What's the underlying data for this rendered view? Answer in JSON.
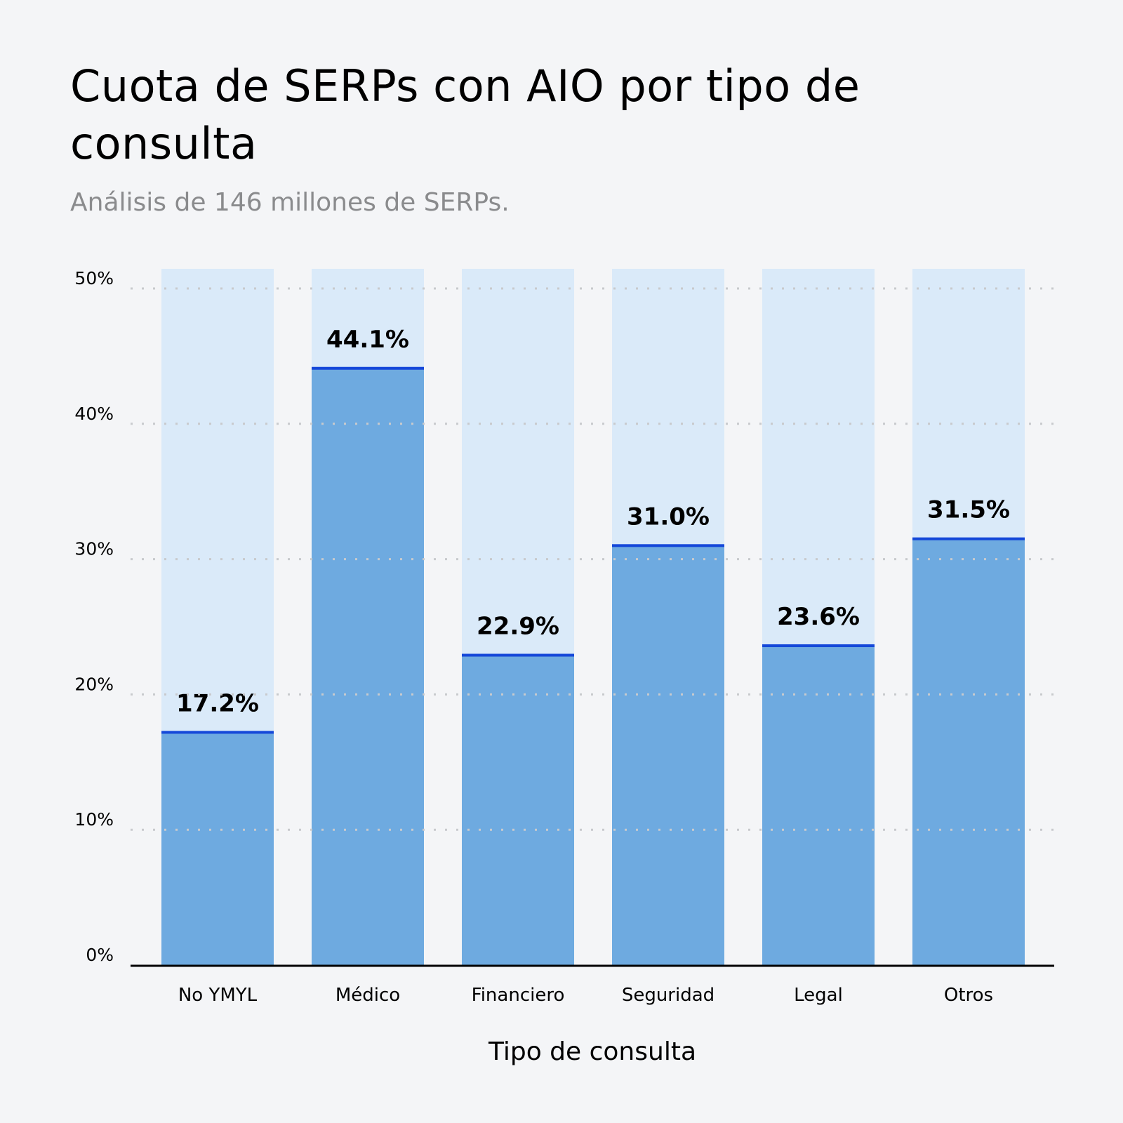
{
  "chart_data": {
    "type": "bar",
    "title": "Cuota de SERPs con AIO por tipo de consulta",
    "subtitle": "Análisis de 146 millones de SERPs.",
    "xlabel": "Tipo de consulta",
    "ylabel": "",
    "categories": [
      "No YMYL",
      "Médico",
      "Financiero",
      "Seguridad",
      "Legal",
      "Otros"
    ],
    "values": [
      17.2,
      44.1,
      22.9,
      31.0,
      23.6,
      31.5
    ],
    "data_labels": [
      "17.2%",
      "44.1%",
      "22.9%",
      "31.0%",
      "23.6%",
      "31.5%"
    ],
    "ylim": [
      0,
      50
    ],
    "yticks": [
      0,
      10,
      20,
      30,
      40,
      50
    ],
    "ytick_labels": [
      "0%",
      "10%",
      "20%",
      "30%",
      "40%",
      "50%"
    ],
    "grid": true,
    "legend": "none",
    "colors": {
      "bar": "#6eaae0",
      "bar_background": "#daeaf9",
      "bar_top": "#1447d9",
      "grid": "#c8cacd",
      "axis": "#000000"
    }
  }
}
